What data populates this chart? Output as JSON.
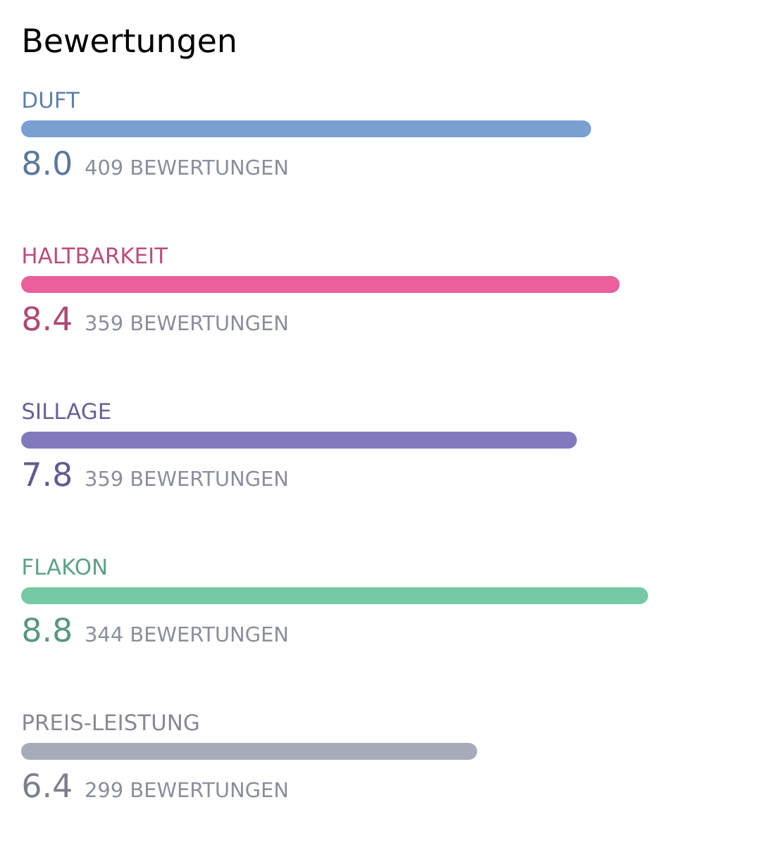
{
  "chart_data": {
    "type": "bar",
    "orientation": "horizontal",
    "title": "Bewertungen",
    "categories": [
      "DUFT",
      "HALTBARKEIT",
      "SILLAGE",
      "FLAKON",
      "PREIS-LEISTUNG"
    ],
    "values": [
      8.0,
      8.4,
      7.8,
      8.8,
      6.4
    ],
    "value_labels": [
      "8.0",
      "8.4",
      "7.8",
      "8.8",
      "6.4"
    ],
    "colors": [
      "#7a9fd3",
      "#e9609c",
      "#8179be",
      "#76c9a5",
      "#a7abb9"
    ],
    "tick_labels": false,
    "annotations": [
      "409 BEWERTUNGEN",
      "359 BEWERTUNGEN",
      "359 BEWERTUNGEN",
      "344 BEWERTUNGEN",
      "299 BEWERTUNGEN"
    ]
  }
}
